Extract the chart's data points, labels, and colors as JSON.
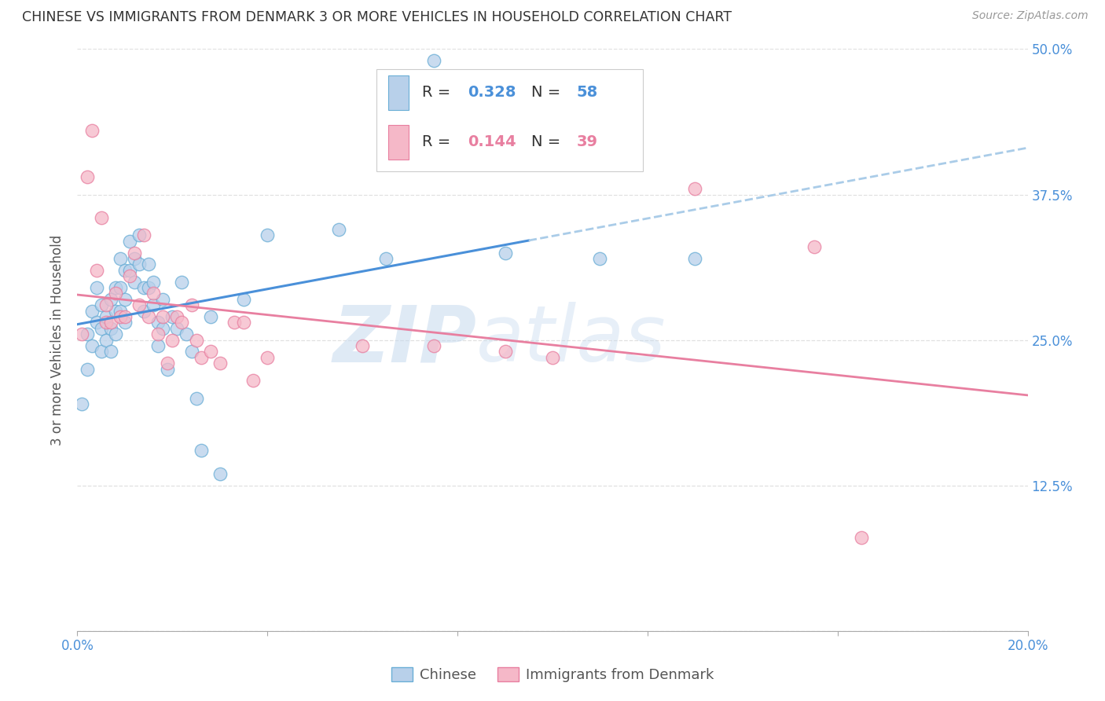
{
  "title": "CHINESE VS IMMIGRANTS FROM DENMARK 3 OR MORE VEHICLES IN HOUSEHOLD CORRELATION CHART",
  "source": "Source: ZipAtlas.com",
  "ylabel": "3 or more Vehicles in Household",
  "xmin": 0.0,
  "xmax": 0.2,
  "ymin": 0.0,
  "ymax": 0.5,
  "x_ticks": [
    0.0,
    0.04,
    0.08,
    0.12,
    0.16,
    0.2
  ],
  "x_tick_labels": [
    "0.0%",
    "",
    "",
    "",
    "",
    "20.0%"
  ],
  "y_ticks": [
    0.0,
    0.125,
    0.25,
    0.375,
    0.5
  ],
  "y_tick_labels": [
    "",
    "12.5%",
    "25.0%",
    "37.5%",
    "50.0%"
  ],
  "chinese_fill": "#b8d0ea",
  "chinese_edge": "#6aaed6",
  "danish_fill": "#f5b8c8",
  "danish_edge": "#e87fa0",
  "chinese_line_color": "#4a90d9",
  "danish_line_color": "#e87fa0",
  "chinese_dash_color": "#aacce8",
  "R_chinese": 0.328,
  "N_chinese": 58,
  "R_danish": 0.144,
  "N_danish": 39,
  "chinese_scatter_x": [
    0.001,
    0.002,
    0.002,
    0.003,
    0.003,
    0.004,
    0.004,
    0.005,
    0.005,
    0.005,
    0.006,
    0.006,
    0.007,
    0.007,
    0.007,
    0.008,
    0.008,
    0.008,
    0.009,
    0.009,
    0.009,
    0.01,
    0.01,
    0.01,
    0.011,
    0.011,
    0.012,
    0.012,
    0.013,
    0.013,
    0.014,
    0.014,
    0.015,
    0.015,
    0.016,
    0.016,
    0.017,
    0.017,
    0.018,
    0.018,
    0.019,
    0.02,
    0.021,
    0.022,
    0.023,
    0.024,
    0.025,
    0.026,
    0.028,
    0.03,
    0.035,
    0.04,
    0.055,
    0.065,
    0.075,
    0.09,
    0.11,
    0.13
  ],
  "chinese_scatter_y": [
    0.195,
    0.225,
    0.255,
    0.245,
    0.275,
    0.265,
    0.295,
    0.24,
    0.26,
    0.28,
    0.25,
    0.27,
    0.285,
    0.26,
    0.24,
    0.295,
    0.275,
    0.255,
    0.32,
    0.295,
    0.275,
    0.31,
    0.285,
    0.265,
    0.335,
    0.31,
    0.32,
    0.3,
    0.34,
    0.315,
    0.295,
    0.275,
    0.315,
    0.295,
    0.3,
    0.28,
    0.265,
    0.245,
    0.285,
    0.26,
    0.225,
    0.27,
    0.26,
    0.3,
    0.255,
    0.24,
    0.2,
    0.155,
    0.27,
    0.135,
    0.285,
    0.34,
    0.345,
    0.32,
    0.49,
    0.325,
    0.32,
    0.32
  ],
  "danish_scatter_x": [
    0.001,
    0.002,
    0.003,
    0.004,
    0.005,
    0.006,
    0.006,
    0.007,
    0.008,
    0.009,
    0.01,
    0.011,
    0.012,
    0.013,
    0.014,
    0.015,
    0.016,
    0.017,
    0.018,
    0.019,
    0.02,
    0.021,
    0.022,
    0.024,
    0.025,
    0.026,
    0.028,
    0.03,
    0.033,
    0.035,
    0.037,
    0.04,
    0.06,
    0.075,
    0.09,
    0.1,
    0.13,
    0.155,
    0.165
  ],
  "danish_scatter_y": [
    0.255,
    0.39,
    0.43,
    0.31,
    0.355,
    0.28,
    0.265,
    0.265,
    0.29,
    0.27,
    0.27,
    0.305,
    0.325,
    0.28,
    0.34,
    0.27,
    0.29,
    0.255,
    0.27,
    0.23,
    0.25,
    0.27,
    0.265,
    0.28,
    0.25,
    0.235,
    0.24,
    0.23,
    0.265,
    0.265,
    0.215,
    0.235,
    0.245,
    0.245,
    0.24,
    0.235,
    0.38,
    0.33,
    0.08
  ],
  "watermark_zip": "ZIP",
  "watermark_atlas": "atlas",
  "legend_label_chinese": "Chinese",
  "legend_label_danish": "Immigrants from Denmark"
}
